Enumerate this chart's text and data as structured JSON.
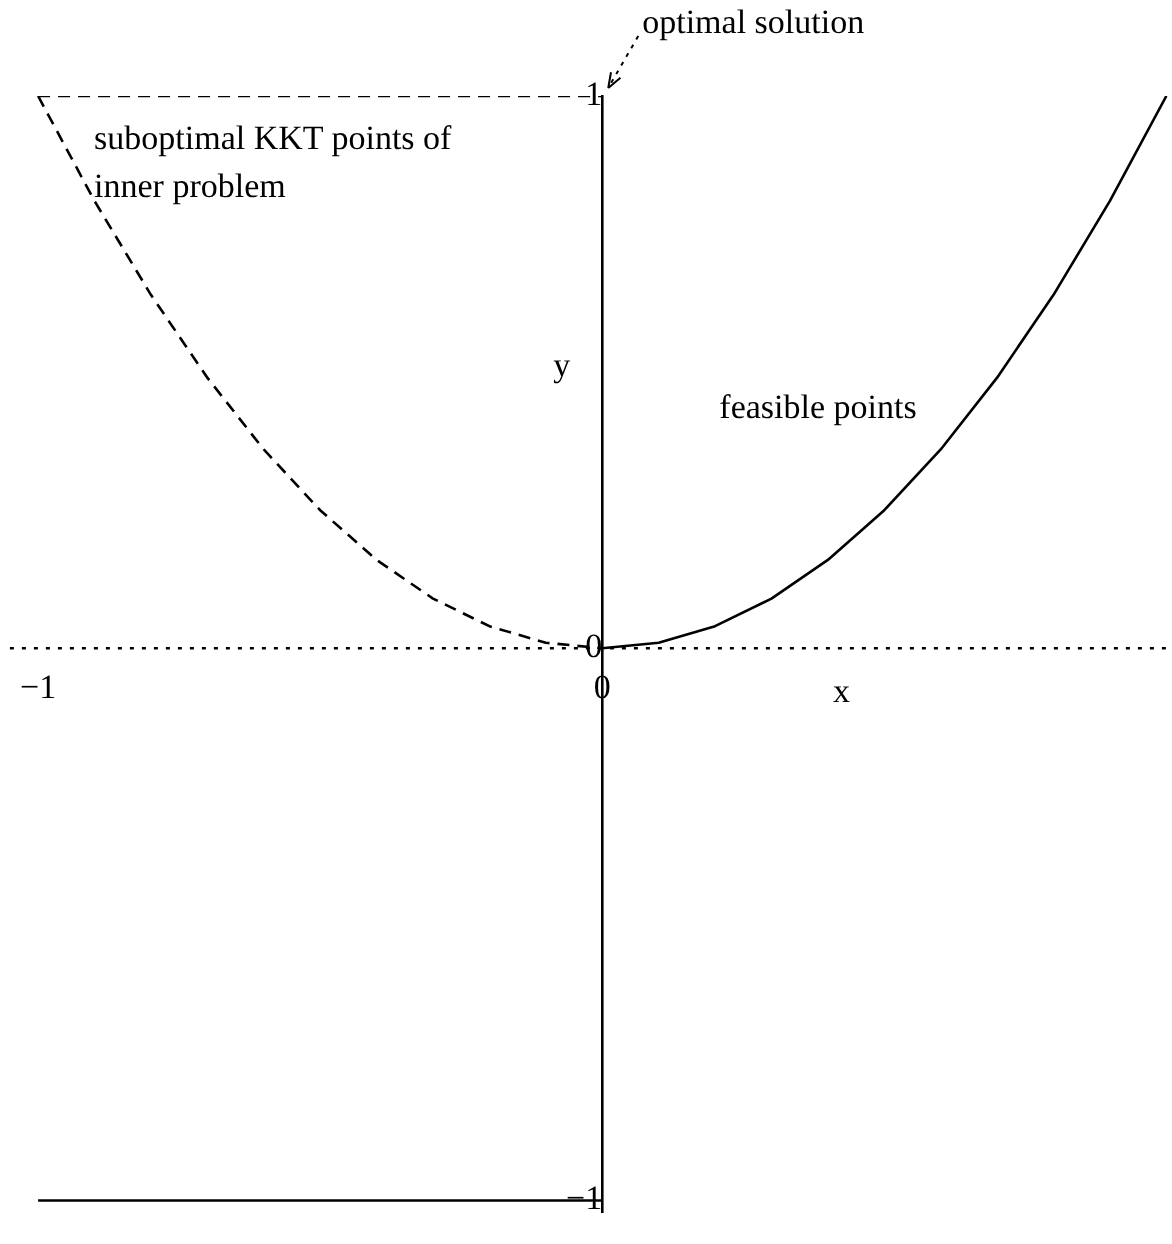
{
  "chart_data": {
    "type": "line",
    "xlabel": "x",
    "ylabel": "y",
    "xlim": [
      -1.05,
      1.01
    ],
    "ylim": [
      -1.02,
      1
    ],
    "xticks": [
      {
        "value": -1,
        "label": "−1"
      },
      0
    ],
    "yticks": [
      {
        "value": -1,
        "label": "−1"
      },
      0,
      1
    ],
    "grid": false,
    "legend": false,
    "marker": "none",
    "series": [
      {
        "color": "#000000",
        "line_style": "solid",
        "x": [
          0,
          0.1,
          0.2,
          0.3,
          0.4,
          0.5,
          0.6,
          0.7,
          0.8,
          0.9,
          1.0
        ],
        "values": [
          0,
          0.01,
          0.04,
          0.09,
          0.16,
          0.25,
          0.36,
          0.49,
          0.64,
          0.81,
          1.0
        ]
      },
      {
        "color": "#000000",
        "line_style": "dashed",
        "x": [
          -1,
          -0.9,
          -0.8,
          -0.7,
          -0.6,
          -0.5,
          -0.4,
          -0.3,
          -0.2,
          -0.1,
          0
        ],
        "values": [
          1,
          0.81,
          0.64,
          0.49,
          0.36,
          0.25,
          0.16,
          0.09,
          0.04,
          0.01,
          0
        ]
      },
      {
        "color": "#000000",
        "line_style": "dashed",
        "x": [
          -1,
          0
        ],
        "values": [
          1,
          1
        ]
      },
      {
        "color": "#000000",
        "line_style": "solid",
        "x": [
          -1,
          0
        ],
        "values": [
          -1,
          -1
        ]
      }
    ],
    "ref_lines": [
      {
        "axis": "y",
        "value": 0,
        "line_style": "dotted",
        "color": "#000000"
      }
    ],
    "annotations": [
      {
        "text": "optimal solution",
        "x": 0,
        "y": 1
      },
      {
        "text": "suboptimal KKT points of inner problem",
        "x": -1,
        "y": 1
      },
      {
        "text": "feasible points",
        "x": 0.6,
        "y": 0.36
      }
    ]
  }
}
